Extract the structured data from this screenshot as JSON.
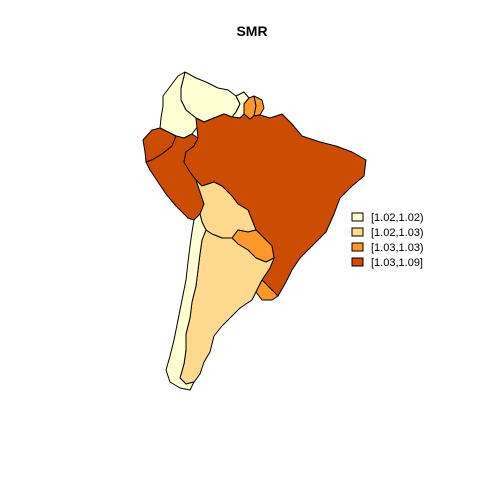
{
  "title": "SMR",
  "colors": {
    "class1": "#FFFFD4",
    "class2": "#FED98E",
    "class3": "#FE9929",
    "class4": "#CC4C02"
  },
  "legend": {
    "items": [
      {
        "label": "[1.02,1.02)",
        "class": "class1"
      },
      {
        "label": "[1.02,1.03)",
        "class": "class2"
      },
      {
        "label": "[1.03,1.03)",
        "class": "class3"
      },
      {
        "label": "[1.03,1.09]",
        "class": "class4"
      }
    ]
  },
  "regions": [
    {
      "name": "Venezuela",
      "class": "class1"
    },
    {
      "name": "Colombia",
      "class": "class1"
    },
    {
      "name": "Guyana",
      "class": "class1"
    },
    {
      "name": "Suriname",
      "class": "class3"
    },
    {
      "name": "French Guiana",
      "class": "class3"
    },
    {
      "name": "Ecuador",
      "class": "class4"
    },
    {
      "name": "Peru",
      "class": "class4"
    },
    {
      "name": "Brazil",
      "class": "class4"
    },
    {
      "name": "Bolivia",
      "class": "class2"
    },
    {
      "name": "Paraguay",
      "class": "class3"
    },
    {
      "name": "Uruguay",
      "class": "class3"
    },
    {
      "name": "Argentina",
      "class": "class2"
    },
    {
      "name": "Chile",
      "class": "class1"
    }
  ]
}
